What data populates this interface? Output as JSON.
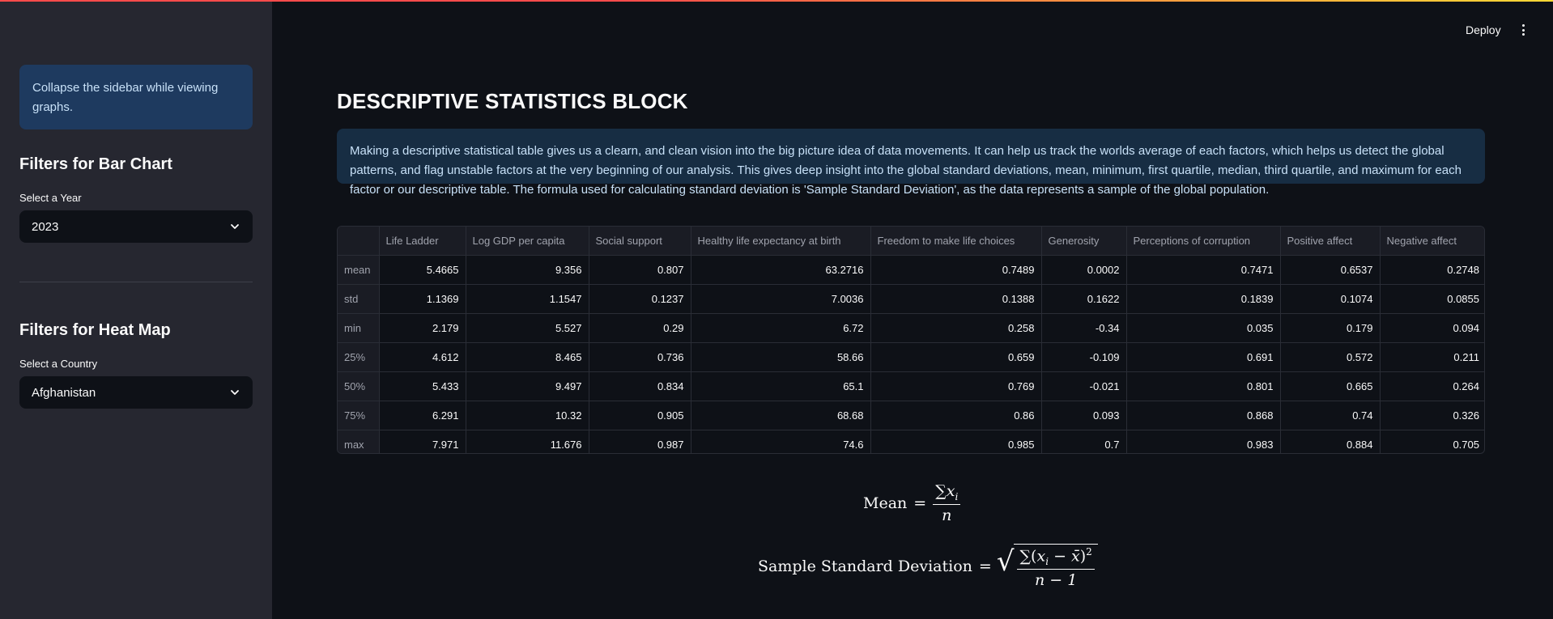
{
  "sidebar": {
    "info": "Collapse the sidebar while viewing graphs.",
    "bar_section": {
      "heading": "Filters for Bar Chart",
      "label": "Select a Year",
      "value": "2023"
    },
    "heat_section": {
      "heading": "Filters for Heat Map",
      "label": "Select a Country",
      "value": "Afghanistan"
    }
  },
  "header": {
    "deploy_label": "Deploy"
  },
  "main": {
    "title": "DESCRIPTIVE STATISTICS BLOCK",
    "description": "Making a descriptive statistical table gives us a clearn, and clean vision into the big picture idea of data movements. It can help us track the worlds average of each factors, which helps us detect the global patterns, and flag unstable factors at the very beginning of our analysis. This gives deep insight into the global standard deviations, mean, minimum, first quartile, median, third quartile, and maximum for each factor or our descriptive table. The formula used for calculating standard deviation is 'Sample Standard Deviation', as the data represents a sample of the global population.",
    "table": {
      "columns": [
        "",
        "Life Ladder",
        "Log GDP per capita",
        "Social support",
        "Healthy life expectancy at birth",
        "Freedom to make life choices",
        "Generosity",
        "Perceptions of corruption",
        "Positive affect",
        "Negative affect"
      ],
      "rows": [
        [
          "mean",
          "5.4665",
          "9.356",
          "0.807",
          "63.2716",
          "0.7489",
          "0.0002",
          "0.7471",
          "0.6537",
          "0.2748"
        ],
        [
          "std",
          "1.1369",
          "1.1547",
          "0.1237",
          "7.0036",
          "0.1388",
          "0.1622",
          "0.1839",
          "0.1074",
          "0.0855"
        ],
        [
          "min",
          "2.179",
          "5.527",
          "0.29",
          "6.72",
          "0.258",
          "-0.34",
          "0.035",
          "0.179",
          "0.094"
        ],
        [
          "25%",
          "4.612",
          "8.465",
          "0.736",
          "58.66",
          "0.659",
          "-0.109",
          "0.691",
          "0.572",
          "0.211"
        ],
        [
          "50%",
          "5.433",
          "9.497",
          "0.834",
          "65.1",
          "0.769",
          "-0.021",
          "0.801",
          "0.665",
          "0.264"
        ],
        [
          "75%",
          "6.291",
          "10.32",
          "0.905",
          "68.68",
          "0.86",
          "0.093",
          "0.868",
          "0.74",
          "0.326"
        ],
        [
          "max",
          "7.971",
          "11.676",
          "0.987",
          "74.6",
          "0.985",
          "0.7",
          "0.983",
          "0.884",
          "0.705"
        ]
      ]
    },
    "formulas": {
      "mean_label": "Mean",
      "sd_label": "Sample Standard Deviation"
    }
  }
}
